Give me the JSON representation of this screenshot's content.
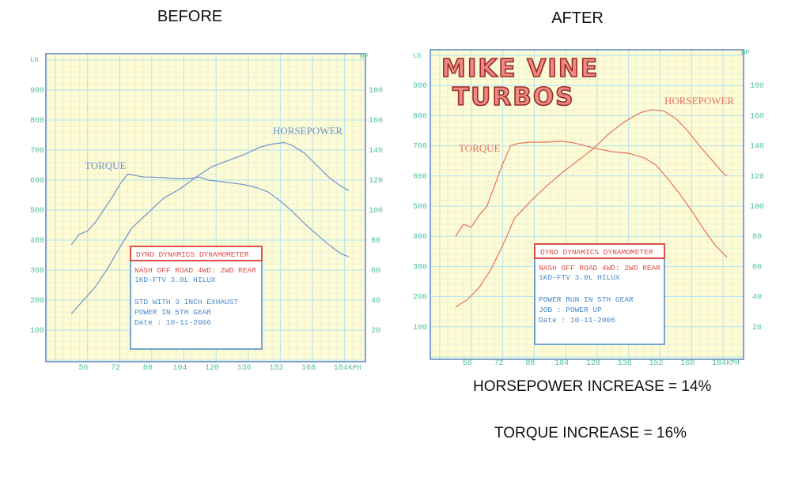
{
  "headings": {
    "before": "BEFORE",
    "after": "AFTER"
  },
  "footer": {
    "hp_increase": "HORSEPOWER INCREASE = 14%",
    "torque_increase": "TORQUE INCREASE = 16%"
  },
  "colors": {
    "paper": "#fffbd2",
    "grid_major": "#aee3f3",
    "grid_minor": "#e4f1dd",
    "frame": "#5a86c8",
    "tick": "#4fc1a2",
    "before_curves": "#6e93cf",
    "after_curves": "#e5735f",
    "legend_red": "#df4f4a",
    "legend_blue": "#4b88c8",
    "logo_fill": "#ef8a82",
    "logo_edge": "#9a2a2a"
  },
  "logo": {
    "line1": "MIKE VINE",
    "line2": "TURBOS"
  },
  "chart_data": [
    {
      "type": "line",
      "title": "BEFORE",
      "xlabel": "KPH",
      "ylabel_left": "Lb",
      "ylabel_right": "HP",
      "xticks": [
        "56",
        "72",
        "88",
        "104",
        "120",
        "136",
        "152",
        "168",
        "184"
      ],
      "xunit": "KPH",
      "yticks_left": [
        "100",
        "200",
        "300",
        "400",
        "500",
        "600",
        "700",
        "800",
        "900"
      ],
      "yticks_right": [
        "20",
        "40",
        "60",
        "80",
        "100",
        "120",
        "140",
        "160",
        "180"
      ],
      "xlim": [
        42,
        194
      ],
      "ylim_left": [
        0,
        1000
      ],
      "ylim_right": [
        0,
        200
      ],
      "grid": true,
      "series": [
        {
          "name": "TORQUE",
          "axis": "left",
          "x": [
            50,
            54,
            58,
            62,
            66,
            70,
            74,
            78,
            82,
            86,
            90,
            96,
            102,
            108,
            114,
            118,
            124,
            130,
            136,
            142,
            148,
            154,
            160,
            166,
            172,
            178,
            184,
            188
          ],
          "y": [
            385,
            420,
            430,
            460,
            500,
            540,
            585,
            620,
            615,
            610,
            610,
            608,
            605,
            605,
            610,
            600,
            595,
            590,
            585,
            575,
            560,
            530,
            495,
            455,
            420,
            385,
            355,
            345
          ]
        },
        {
          "name": "HORSEPOWER",
          "axis": "right",
          "x": [
            50,
            56,
            62,
            68,
            74,
            80,
            88,
            96,
            104,
            112,
            120,
            128,
            136,
            144,
            150,
            156,
            160,
            166,
            172,
            178,
            184,
            188
          ],
          "y": [
            31,
            40,
            49,
            61,
            75,
            88,
            98,
            108,
            114,
            122,
            129,
            133,
            137,
            142,
            144,
            145,
            143,
            138,
            130,
            122,
            116,
            113
          ]
        }
      ],
      "labels": {
        "torque": "TORQUE",
        "horsepower": "HORSEPOWER"
      },
      "legend": {
        "header": "DYNO DYNAMICS DYNAMOMETER",
        "line1": "NASH OFF ROAD 4WD: 2WD REAR",
        "line2": "1KD-FTV  3.0L HILUX",
        "line3": "STD WITH 3 INCH EXHAUST",
        "line4": "POWER IN 5TH GEAR",
        "line5": "Date      : 10-11-2006"
      }
    },
    {
      "type": "line",
      "title": "AFTER",
      "xlabel": "KPH",
      "ylabel_left": "Lb",
      "ylabel_right": "HP",
      "xticks": [
        "56",
        "72",
        "88",
        "104",
        "120",
        "136",
        "152",
        "168",
        "184"
      ],
      "xunit": "KPH",
      "yticks_left": [
        "100",
        "200",
        "300",
        "400",
        "500",
        "600",
        "700",
        "800",
        "900"
      ],
      "yticks_right": [
        "20",
        "40",
        "60",
        "80",
        "100",
        "120",
        "140",
        "160",
        "180"
      ],
      "xlim": [
        42,
        194
      ],
      "ylim_left": [
        0,
        1000
      ],
      "ylim_right": [
        0,
        200
      ],
      "grid": true,
      "series": [
        {
          "name": "TORQUE",
          "axis": "left",
          "x": [
            50,
            54,
            58,
            62,
            66,
            70,
            74,
            78,
            82,
            88,
            96,
            104,
            110,
            116,
            122,
            130,
            138,
            146,
            152,
            158,
            164,
            170,
            176,
            182,
            188
          ],
          "y": [
            400,
            440,
            430,
            470,
            500,
            570,
            640,
            700,
            708,
            712,
            712,
            715,
            710,
            700,
            690,
            680,
            675,
            660,
            635,
            590,
            540,
            485,
            425,
            370,
            330
          ]
        },
        {
          "name": "HORSEPOWER",
          "axis": "right",
          "x": [
            50,
            56,
            62,
            68,
            74,
            80,
            88,
            96,
            104,
            112,
            120,
            128,
            136,
            144,
            150,
            156,
            162,
            168,
            174,
            180,
            186,
            188
          ],
          "y": [
            33,
            38,
            46,
            58,
            74,
            92,
            103,
            113,
            122,
            130,
            138,
            148,
            156,
            162,
            164,
            163,
            158,
            150,
            140,
            131,
            122,
            120
          ]
        }
      ],
      "labels": {
        "torque": "TORQUE",
        "horsepower": "HORSEPOWER"
      },
      "legend": {
        "header": "DYNO DYNAMICS DYNAMOMETER",
        "line1": "NASH OFF ROAD 4WD: 2WD REAR",
        "line2": "1KD-FTV  3.0L HILUX",
        "line3": "POWER RUN IN 5TH GEAR",
        "line4": "JOB  : POWER UP",
        "line5": "Date     : 10-11-2006"
      }
    }
  ]
}
